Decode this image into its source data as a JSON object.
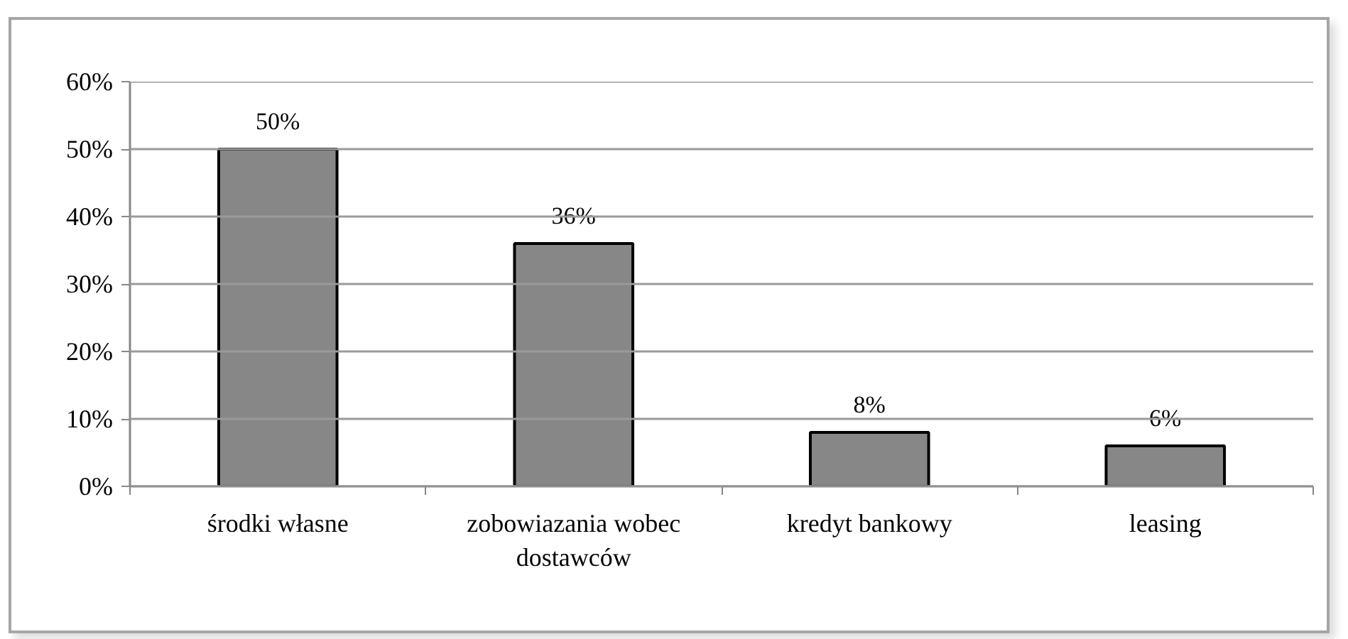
{
  "chart_data": {
    "type": "bar",
    "categories": [
      "środki własne",
      "zobowiazania wobec dostawców",
      "kredyt bankowy",
      "leasing"
    ],
    "values": [
      50,
      36,
      8,
      6
    ],
    "color": "#878787",
    "value_labels": [
      "50%",
      "36%",
      "8%",
      "6%"
    ],
    "ylim": [
      0,
      60
    ],
    "yticks": [
      {
        "value": 0,
        "label": "0%"
      },
      {
        "value": 10,
        "label": "10%"
      },
      {
        "value": 20,
        "label": "20%"
      },
      {
        "value": 30,
        "label": "30%"
      },
      {
        "value": 40,
        "label": "40%"
      },
      {
        "value": 50,
        "label": "50%"
      },
      {
        "value": 60,
        "label": "60%"
      }
    ],
    "grid": "y"
  }
}
